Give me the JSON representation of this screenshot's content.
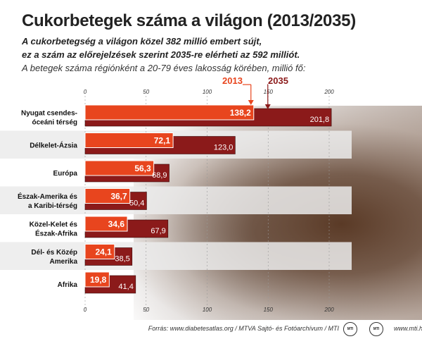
{
  "header": {
    "title": "Cukorbetegek száma a világon (2013/2035)",
    "subtitle_line1": "A cukorbetegség a világon közel 382 millió embert sújt,",
    "subtitle_line2": "ez a szám az előrejelzések szerint 2035-re elérheti az 592 milliót.",
    "subtitle_line3": "A betegek száma régiónként a 20-79 éves lakosság körében, millió fő:"
  },
  "colors": {
    "series_2013": "#e8451e",
    "series_2035": "#8b1a1a",
    "label_bg": "#ebebeb"
  },
  "chart_data": {
    "type": "bar",
    "orientation": "horizontal",
    "categories": [
      [
        "Nyugat csendes-",
        "óceáni térség"
      ],
      [
        "Délkelet-Ázsia"
      ],
      [
        "Európa"
      ],
      [
        "Észak-Amerika és",
        "a Karibi-térség"
      ],
      [
        "Közel-Kelet és",
        "Észak-Afrika"
      ],
      [
        "Dél- és Közép",
        "Amerika"
      ],
      [
        "Afrika"
      ]
    ],
    "series": [
      {
        "name": "2013",
        "values": [
          138.2,
          72.1,
          56.3,
          36.7,
          34.6,
          24.1,
          19.8
        ],
        "labels": [
          "138,2",
          "72,1",
          "56,3",
          "36,7",
          "34,6",
          "24,1",
          "19,8"
        ]
      },
      {
        "name": "2035",
        "values": [
          201.8,
          123.0,
          68.9,
          50.4,
          67.9,
          38.5,
          41.4
        ],
        "labels": [
          "201,8",
          "123,0",
          "68,9",
          "50,4",
          "67,9",
          "38,5",
          "41,4"
        ]
      }
    ],
    "xticks": [
      0,
      50,
      100,
      150,
      200
    ],
    "xlim": [
      0,
      200
    ],
    "grid": true,
    "legend": "top, arrows pointing at first bar"
  },
  "footer": {
    "source": "Forrás: www.diabetesatlas.org / MTVA Sajtó- és Fotóarchívum / MTI",
    "logo1": "MTI",
    "logo2": "MTI",
    "site": "www.mti.hu"
  }
}
